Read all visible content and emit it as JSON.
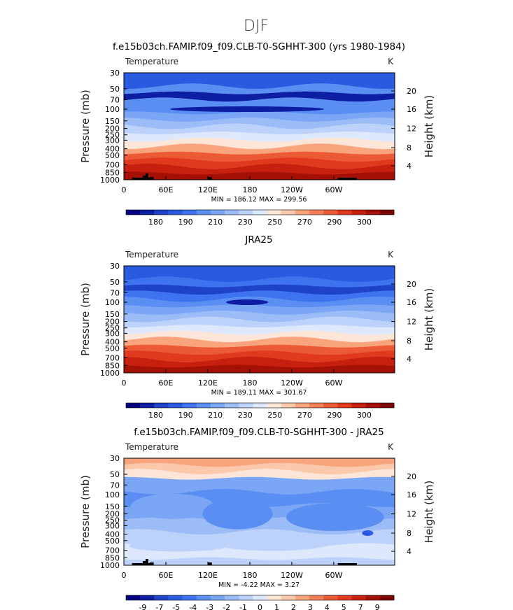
{
  "page_title": "DJF",
  "chart_data": [
    {
      "type": "heatmap",
      "title": "f.e15b03ch.FAMIP.f09_f09.CLB-T0-SGHHT-300 (yrs 1980-1984)",
      "variable": "Temperature",
      "units": "K",
      "ylabel_left": "Pressure  (mb)",
      "ylabel_right": "Height  (km)",
      "x_ticks": [
        "0",
        "60E",
        "120E",
        "180",
        "120W",
        "60W"
      ],
      "y_ticks": [
        "30",
        "50",
        "70",
        "100",
        "150",
        "200",
        "250",
        "300",
        "400",
        "500",
        "700",
        "850",
        "1000"
      ],
      "height_ticks": [
        "20",
        "16",
        "12",
        "8",
        "4"
      ],
      "stats": {
        "min_label": "MIN = ",
        "min": "186.12",
        "max_label": "MAX = ",
        "max": "299.56"
      },
      "colorbar_labels": [
        "180",
        "190",
        "210",
        "230",
        "250",
        "270",
        "290",
        "300"
      ],
      "colors": [
        "#00007f",
        "#0d1ea3",
        "#1f43c8",
        "#2a5ae0",
        "#3e73f0",
        "#5a8ef2",
        "#7aa6f5",
        "#9bbcf7",
        "#bdd2fa",
        "#dde8fc",
        "#fde6d8",
        "#fcc8ab",
        "#f9a47d",
        "#f47e55",
        "#ec5a35",
        "#e0391d",
        "#c8200f",
        "#a51006",
        "#7a0403"
      ],
      "band_levels": [
        3,
        3,
        5,
        1,
        5,
        5,
        6,
        7,
        8,
        9,
        10,
        12,
        14,
        15,
        16,
        17
      ]
    },
    {
      "type": "heatmap",
      "title": "JRA25",
      "variable": "Temperature",
      "units": "K",
      "ylabel_left": "Pressure  (mb)",
      "ylabel_right": "Height  (km)",
      "x_ticks": [
        "0",
        "60E",
        "120E",
        "180",
        "120W",
        "60W"
      ],
      "y_ticks": [
        "30",
        "50",
        "70",
        "100",
        "150",
        "200",
        "250",
        "300",
        "400",
        "500",
        "700",
        "850",
        "1000"
      ],
      "height_ticks": [
        "20",
        "16",
        "12",
        "8",
        "4"
      ],
      "stats": {
        "min_label": "MIN = ",
        "min": "189.11",
        "max_label": "MAX = ",
        "max": "301.67"
      },
      "colorbar_labels": [
        "180",
        "190",
        "210",
        "230",
        "250",
        "270",
        "290",
        "300"
      ],
      "colors": [
        "#00007f",
        "#0d1ea3",
        "#1f43c8",
        "#2a5ae0",
        "#3e73f0",
        "#5a8ef2",
        "#7aa6f5",
        "#9bbcf7",
        "#bdd2fa",
        "#dde8fc",
        "#fde6d8",
        "#fcc8ab",
        "#f9a47d",
        "#f47e55",
        "#ec5a35",
        "#e0391d",
        "#c8200f",
        "#a51006",
        "#7a0403"
      ],
      "band_levels": [
        3,
        3,
        4,
        2,
        4,
        5,
        6,
        7,
        8,
        9,
        10,
        12,
        14,
        15,
        16,
        17
      ]
    },
    {
      "type": "heatmap",
      "title": "f.e15b03ch.FAMIP.f09_f09.CLB-T0-SGHHT-300 - JRA25",
      "variable": "Temperature",
      "units": "K",
      "ylabel_left": "Pressure  (mb)",
      "ylabel_right": "Height  (km)",
      "x_ticks": [
        "0",
        "60E",
        "120E",
        "180",
        "120W",
        "60W"
      ],
      "y_ticks": [
        "30",
        "50",
        "70",
        "100",
        "150",
        "200",
        "250",
        "300",
        "400",
        "500",
        "700",
        "850",
        "1000"
      ],
      "height_ticks": [
        "20",
        "16",
        "12",
        "8",
        "4"
      ],
      "stats": {
        "min_label": "MIN = ",
        "min": "-4.22",
        "max_label": "MAX = ",
        "max": "3.27"
      },
      "colorbar_labels": [
        "-9",
        "-7",
        "-5",
        "-4",
        "-3",
        "-2",
        "-1",
        "0",
        "1",
        "2",
        "3",
        "4",
        "5",
        "7",
        "9"
      ],
      "colors": [
        "#00007f",
        "#0d1ea3",
        "#1f43c8",
        "#2a5ae0",
        "#3e73f0",
        "#5a8ef2",
        "#7aa6f5",
        "#9bbcf7",
        "#bdd2fa",
        "#dde8fc",
        "#fde6d8",
        "#fcc8ab",
        "#f9a47d",
        "#f47e55",
        "#ec5a35",
        "#e0391d",
        "#c8200f",
        "#a51006",
        "#7a0403"
      ],
      "band_levels": [
        12,
        11,
        10,
        6,
        6,
        5,
        5,
        6,
        6,
        7,
        7,
        8,
        8,
        9,
        9,
        8
      ]
    }
  ]
}
